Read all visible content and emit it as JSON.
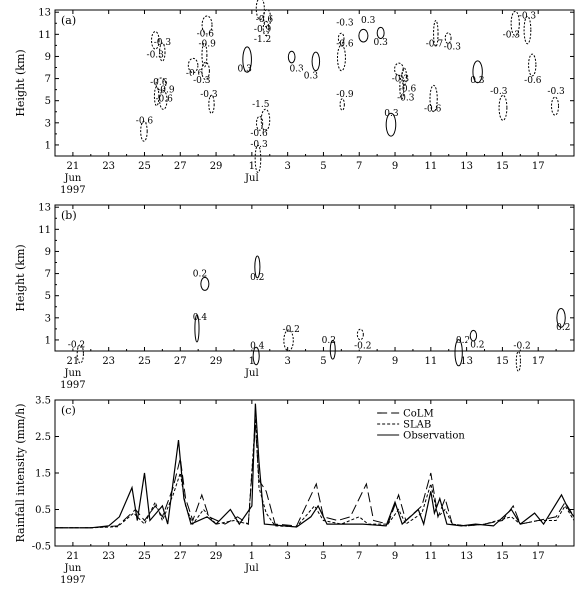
{
  "chart_data": [
    {
      "type": "contour",
      "panel": "(a)",
      "ylabel": "Height (km)",
      "y_ticks": [
        "1",
        "3",
        "5",
        "7",
        "9",
        "11",
        "13"
      ],
      "ylim": [
        0,
        13.2
      ],
      "x_ticks": [
        "21",
        "23",
        "25",
        "27",
        "29",
        "1",
        "3",
        "5",
        "7",
        "9",
        "11",
        "13",
        "15",
        "17"
      ],
      "x_month_labels": [
        "Jun",
        "Jul"
      ],
      "x_year_label": "1997",
      "xlim_days": [
        0,
        29
      ],
      "contour_labels": [
        {
          "text": "-0.3",
          "day": 6.0,
          "h": 10.2
        },
        {
          "text": "-0.3",
          "day": 5.6,
          "h": 9.1
        },
        {
          "text": "-0.6",
          "day": 5.8,
          "h": 6.6
        },
        {
          "text": "-0.9",
          "day": 6.2,
          "h": 5.9
        },
        {
          "text": "-0.6",
          "day": 6.1,
          "h": 5.1
        },
        {
          "text": "-0.6",
          "day": 5.0,
          "h": 3.1
        },
        {
          "text": "-0.6",
          "day": 8.4,
          "h": 11.0
        },
        {
          "text": "-0.9",
          "day": 8.5,
          "h": 10.1
        },
        {
          "text": "-0.6",
          "day": 7.8,
          "h": 7.4
        },
        {
          "text": "-0.3",
          "day": 8.2,
          "h": 6.8
        },
        {
          "text": "-0.3",
          "day": 8.6,
          "h": 5.5
        },
        {
          "text": "-0.6",
          "day": 11.7,
          "h": 12.3
        },
        {
          "text": "-0.9",
          "day": 11.6,
          "h": 11.4
        },
        {
          "text": "-1.2",
          "day": 11.6,
          "h": 10.5
        },
        {
          "text": "0.3",
          "day": 10.6,
          "h": 7.8
        },
        {
          "text": "-1.5",
          "day": 11.5,
          "h": 4.6
        },
        {
          "text": "-0.6",
          "day": 11.4,
          "h": 2.0
        },
        {
          "text": "-0.3",
          "day": 11.4,
          "h": 1.0
        },
        {
          "text": "0.3",
          "day": 13.5,
          "h": 7.8
        },
        {
          "text": "0.3",
          "day": 14.3,
          "h": 7.2
        },
        {
          "text": "-0.3",
          "day": 16.2,
          "h": 12.0
        },
        {
          "text": "-0.6",
          "day": 16.2,
          "h": 10.1
        },
        {
          "text": "-0.9",
          "day": 16.2,
          "h": 5.5
        },
        {
          "text": "0.3",
          "day": 17.5,
          "h": 12.2
        },
        {
          "text": "0.3",
          "day": 18.2,
          "h": 10.2
        },
        {
          "text": "-0.3",
          "day": 19.3,
          "h": 6.9
        },
        {
          "text": "-0.6",
          "day": 19.7,
          "h": 6.0
        },
        {
          "text": "-0.3",
          "day": 19.6,
          "h": 5.2
        },
        {
          "text": "0.3",
          "day": 18.8,
          "h": 3.8
        },
        {
          "text": "-0.7",
          "day": 21.2,
          "h": 10.1
        },
        {
          "text": "-0.3",
          "day": 22.2,
          "h": 9.8
        },
        {
          "text": "-0.6",
          "day": 21.1,
          "h": 4.2
        },
        {
          "text": "0.3",
          "day": 23.6,
          "h": 6.8
        },
        {
          "text": "-0.3",
          "day": 26.4,
          "h": 12.6
        },
        {
          "text": "-0.3",
          "day": 25.5,
          "h": 10.9
        },
        {
          "text": "-0.3",
          "day": 24.8,
          "h": 5.8
        },
        {
          "text": "-0.6",
          "day": 26.7,
          "h": 6.8
        },
        {
          "text": "-0.3",
          "day": 28.0,
          "h": 5.8
        }
      ]
    },
    {
      "type": "contour",
      "panel": "(b)",
      "ylabel": "Height (km)",
      "y_ticks": [
        "1",
        "3",
        "5",
        "7",
        "9",
        "11",
        "13"
      ],
      "ylim": [
        0,
        13.2
      ],
      "x_ticks": [
        "21",
        "23",
        "25",
        "27",
        "29",
        "1",
        "3",
        "5",
        "7",
        "9",
        "11",
        "13",
        "15",
        "17"
      ],
      "x_month_labels": [
        "Jun",
        "Jul"
      ],
      "x_year_label": "1997",
      "xlim_days": [
        0,
        29
      ],
      "contour_labels": [
        {
          "text": "-0.2",
          "day": 1.2,
          "h": 0.5
        },
        {
          "text": "0.2",
          "day": 8.1,
          "h": 6.9
        },
        {
          "text": "0.4",
          "day": 8.1,
          "h": 3.0
        },
        {
          "text": "0.2",
          "day": 11.3,
          "h": 6.6
        },
        {
          "text": "-0.2",
          "day": 13.2,
          "h": 1.9
        },
        {
          "text": "0.4",
          "day": 11.3,
          "h": 0.4
        },
        {
          "text": "0.2",
          "day": 15.3,
          "h": 0.9
        },
        {
          "text": "-0.2",
          "day": 17.2,
          "h": 0.4
        },
        {
          "text": "0.2",
          "day": 22.8,
          "h": 0.9
        },
        {
          "text": "0.2",
          "day": 23.6,
          "h": 0.5
        },
        {
          "text": "-0.2",
          "day": 26.1,
          "h": 0.4
        },
        {
          "text": "0.2",
          "day": 28.4,
          "h": 2.1
        }
      ]
    },
    {
      "type": "line",
      "panel": "(c)",
      "ylabel": "Rainfall intensity (mm/h)",
      "y_ticks": [
        "-0.5",
        "0.5",
        "1.5",
        "2.5",
        "3.5"
      ],
      "ylim": [
        -0.5,
        3.5
      ],
      "x_ticks": [
        "21",
        "23",
        "25",
        "27",
        "29",
        "1",
        "3",
        "5",
        "7",
        "9",
        "11",
        "13",
        "15",
        "17"
      ],
      "x_month_labels": [
        "Jun",
        "Jul"
      ],
      "x_year_label": "1997",
      "xlim_days": [
        0,
        29
      ],
      "legend_position": "top-right",
      "series": [
        {
          "name": "CoLM",
          "style": "long-dash",
          "points": [
            [
              0,
              0
            ],
            [
              2,
              0
            ],
            [
              3.5,
              0.05
            ],
            [
              4.5,
              0.5
            ],
            [
              5.0,
              0.2
            ],
            [
              5.6,
              0.6
            ],
            [
              6.0,
              0.3
            ],
            [
              6.6,
              1.1
            ],
            [
              7.0,
              1.9
            ],
            [
              7.3,
              0.8
            ],
            [
              7.7,
              0.2
            ],
            [
              8.2,
              0.9
            ],
            [
              8.6,
              0.3
            ],
            [
              9.5,
              0.1
            ],
            [
              10.2,
              0.3
            ],
            [
              10.8,
              0.1
            ],
            [
              11.2,
              2.8
            ],
            [
              11.4,
              1.3
            ],
            [
              11.8,
              1.0
            ],
            [
              12.3,
              0.1
            ],
            [
              13.5,
              0.05
            ],
            [
              14.6,
              1.2
            ],
            [
              15.0,
              0.3
            ],
            [
              15.8,
              0.2
            ],
            [
              16.5,
              0.3
            ],
            [
              17.0,
              0.8
            ],
            [
              17.4,
              1.2
            ],
            [
              17.8,
              0.2
            ],
            [
              18.6,
              0.1
            ],
            [
              19.2,
              0.9
            ],
            [
              19.6,
              0.2
            ],
            [
              20.5,
              0.6
            ],
            [
              21.0,
              1.5
            ],
            [
              21.4,
              0.3
            ],
            [
              21.8,
              0.8
            ],
            [
              22.2,
              0.1
            ],
            [
              23.0,
              0.05
            ],
            [
              24.0,
              0.1
            ],
            [
              25.0,
              0.2
            ],
            [
              25.6,
              0.6
            ],
            [
              26.0,
              0.1
            ],
            [
              27.0,
              0.2
            ],
            [
              28.0,
              0.3
            ],
            [
              28.5,
              0.7
            ],
            [
              29,
              0.3
            ]
          ]
        },
        {
          "name": "SLAB",
          "style": "short-dash",
          "points": [
            [
              0,
              0
            ],
            [
              2,
              0
            ],
            [
              3.5,
              0.03
            ],
            [
              4.4,
              0.4
            ],
            [
              5.0,
              0.1
            ],
            [
              5.6,
              0.7
            ],
            [
              6.0,
              0.2
            ],
            [
              6.6,
              0.9
            ],
            [
              7.0,
              1.5
            ],
            [
              7.3,
              0.6
            ],
            [
              7.7,
              0.1
            ],
            [
              8.3,
              0.5
            ],
            [
              9.0,
              0.1
            ],
            [
              10.0,
              0.2
            ],
            [
              10.8,
              0.1
            ],
            [
              11.2,
              3.0
            ],
            [
              11.4,
              1.1
            ],
            [
              11.8,
              0.4
            ],
            [
              12.3,
              0.05
            ],
            [
              13.5,
              0.03
            ],
            [
              14.5,
              0.6
            ],
            [
              15.0,
              0.2
            ],
            [
              16.0,
              0.1
            ],
            [
              17.0,
              0.3
            ],
            [
              17.5,
              0.1
            ],
            [
              18.6,
              0.1
            ],
            [
              19.2,
              0.5
            ],
            [
              19.6,
              0.1
            ],
            [
              20.5,
              0.4
            ],
            [
              21.0,
              1.2
            ],
            [
              21.4,
              0.3
            ],
            [
              21.8,
              0.5
            ],
            [
              22.2,
              0.1
            ],
            [
              23.0,
              0.05
            ],
            [
              24.0,
              0.1
            ],
            [
              25.5,
              0.3
            ],
            [
              26.0,
              0.1
            ],
            [
              27.0,
              0.2
            ],
            [
              28.0,
              0.2
            ],
            [
              28.5,
              0.6
            ],
            [
              29,
              0.2
            ]
          ]
        },
        {
          "name": "Observation",
          "style": "solid",
          "points": [
            [
              0,
              0
            ],
            [
              2,
              0
            ],
            [
              3.0,
              0.05
            ],
            [
              3.6,
              0.3
            ],
            [
              4.3,
              1.1
            ],
            [
              4.6,
              0.2
            ],
            [
              5.0,
              1.5
            ],
            [
              5.3,
              0.2
            ],
            [
              6.0,
              0.6
            ],
            [
              6.3,
              0.1
            ],
            [
              6.9,
              2.4
            ],
            [
              7.2,
              0.8
            ],
            [
              7.6,
              0.1
            ],
            [
              8.5,
              0.3
            ],
            [
              9.0,
              0.1
            ],
            [
              9.8,
              0.5
            ],
            [
              10.3,
              0.1
            ],
            [
              11.0,
              0.6
            ],
            [
              11.2,
              3.4
            ],
            [
              11.4,
              1.8
            ],
            [
              11.7,
              0.1
            ],
            [
              13.5,
              0.02
            ],
            [
              14.3,
              0.3
            ],
            [
              14.7,
              0.6
            ],
            [
              15.2,
              0.1
            ],
            [
              16.0,
              0.1
            ],
            [
              17.2,
              0.1
            ],
            [
              18.5,
              0.05
            ],
            [
              19.0,
              0.7
            ],
            [
              19.4,
              0.1
            ],
            [
              20.3,
              0.5
            ],
            [
              20.6,
              0.1
            ],
            [
              21.0,
              1.0
            ],
            [
              21.2,
              0.4
            ],
            [
              21.5,
              0.8
            ],
            [
              21.9,
              0.1
            ],
            [
              22.7,
              0.05
            ],
            [
              23.5,
              0.1
            ],
            [
              24.5,
              0.05
            ],
            [
              25.5,
              0.5
            ],
            [
              26.0,
              0.1
            ],
            [
              26.8,
              0.4
            ],
            [
              27.3,
              0.1
            ],
            [
              28.3,
              0.9
            ],
            [
              28.7,
              0.5
            ],
            [
              29,
              0.3
            ]
          ]
        }
      ]
    }
  ]
}
